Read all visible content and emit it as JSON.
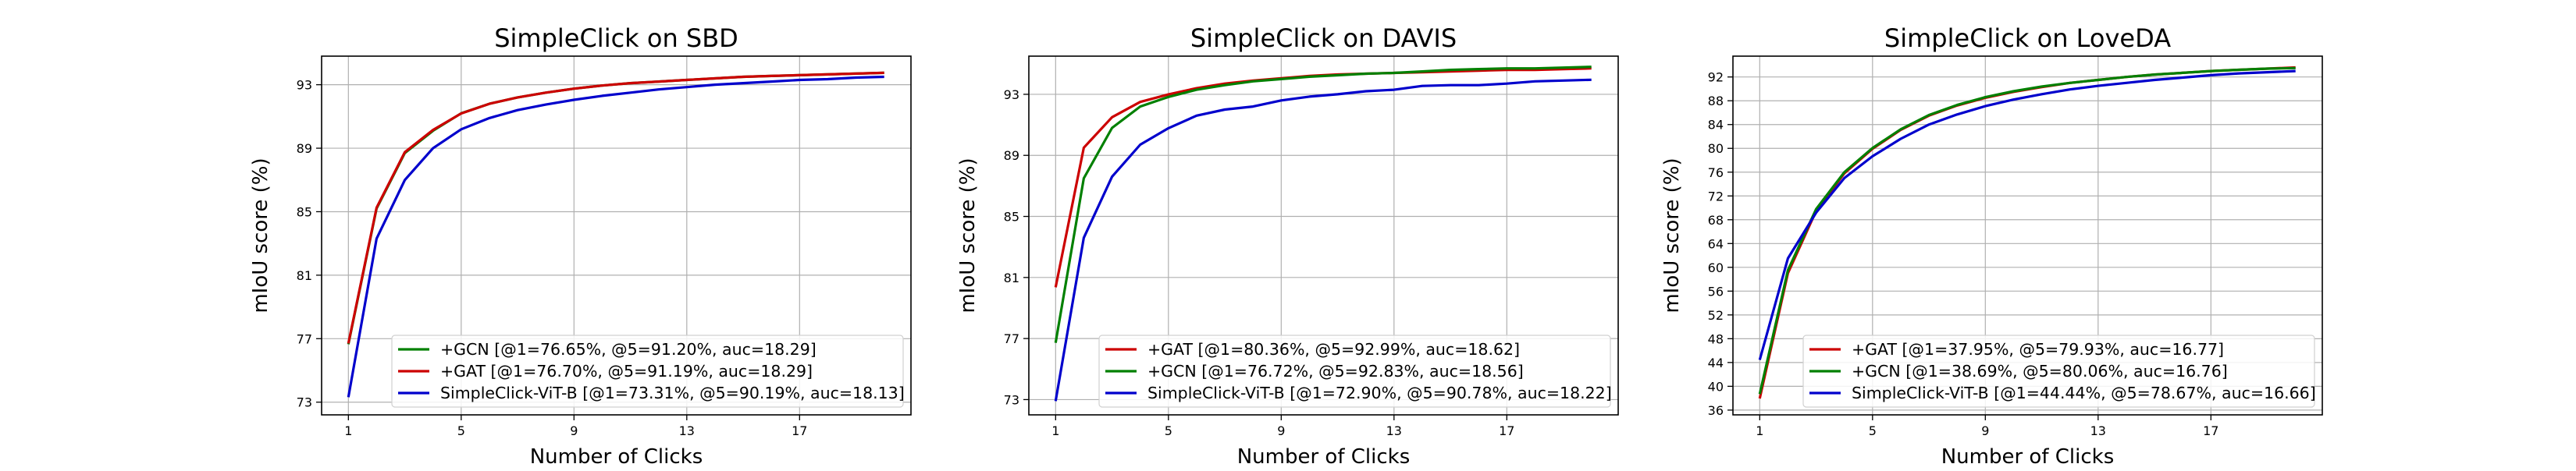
{
  "chart_data": [
    {
      "type": "line",
      "title": "SimpleClick on SBD",
      "xlabel": "Number of Clicks",
      "ylabel": "mIoU score (%)",
      "xlim": [
        0.05,
        20.95
      ],
      "ylim": [
        72.2,
        94.8
      ],
      "xticks": [
        1,
        5,
        9,
        13,
        17
      ],
      "yticks": [
        73,
        77,
        81,
        85,
        89,
        93
      ],
      "grid": true,
      "legend_position": "lower-right",
      "x": [
        1,
        2,
        3,
        4,
        5,
        6,
        7,
        8,
        9,
        10,
        11,
        12,
        13,
        14,
        15,
        16,
        17,
        18,
        19,
        20
      ],
      "series": [
        {
          "name": "+GCN [@1=76.65%, @5=91.20%, auc=18.29]",
          "color": "#008000",
          "values": [
            76.65,
            85.2,
            88.7,
            90.1,
            91.2,
            91.8,
            92.2,
            92.5,
            92.75,
            92.95,
            93.1,
            93.2,
            93.3,
            93.4,
            93.5,
            93.55,
            93.6,
            93.65,
            93.7,
            93.75
          ]
        },
        {
          "name": "+GAT [@1=76.70%, @5=91.19%, auc=18.29]",
          "color": "#cc0000",
          "values": [
            76.7,
            85.25,
            88.75,
            90.15,
            91.19,
            91.8,
            92.2,
            92.5,
            92.75,
            92.95,
            93.1,
            93.2,
            93.3,
            93.4,
            93.5,
            93.55,
            93.6,
            93.65,
            93.7,
            93.75
          ]
        },
        {
          "name": "SimpleClick-ViT-B [@1=73.31%, @5=90.19%, auc=18.13]",
          "color": "#0000cc",
          "values": [
            73.31,
            83.3,
            87.0,
            89.0,
            90.19,
            90.9,
            91.4,
            91.75,
            92.05,
            92.3,
            92.5,
            92.7,
            92.85,
            93.0,
            93.1,
            93.2,
            93.3,
            93.35,
            93.45,
            93.5
          ]
        }
      ]
    },
    {
      "type": "line",
      "title": "SimpleClick on DAVIS",
      "xlabel": "Number of Clicks",
      "ylabel": "mIoU score (%)",
      "xlim": [
        0.05,
        20.95
      ],
      "ylim": [
        72.0,
        95.5
      ],
      "xticks": [
        1,
        5,
        9,
        13,
        17
      ],
      "yticks": [
        73,
        77,
        81,
        85,
        89,
        93
      ],
      "grid": true,
      "legend_position": "lower-right",
      "x": [
        1,
        2,
        3,
        4,
        5,
        6,
        7,
        8,
        9,
        10,
        11,
        12,
        13,
        14,
        15,
        16,
        17,
        18,
        19,
        20
      ],
      "series": [
        {
          "name": "+GAT [@1=80.36%, @5=92.99%, auc=18.62]",
          "color": "#cc0000",
          "values": [
            80.36,
            89.5,
            91.5,
            92.5,
            92.99,
            93.4,
            93.7,
            93.9,
            94.05,
            94.2,
            94.3,
            94.35,
            94.4,
            94.45,
            94.5,
            94.55,
            94.6,
            94.6,
            94.65,
            94.7
          ]
        },
        {
          "name": "+GCN [@1=76.72%, @5=92.83%, auc=18.56]",
          "color": "#008000",
          "values": [
            76.72,
            87.5,
            90.8,
            92.2,
            92.83,
            93.3,
            93.6,
            93.85,
            94.0,
            94.15,
            94.25,
            94.35,
            94.4,
            94.5,
            94.6,
            94.65,
            94.7,
            94.7,
            94.75,
            94.8
          ]
        },
        {
          "name": "SimpleClick-ViT-B [@1=72.90%, @5=90.78%, auc=18.22]",
          "color": "#0000cc",
          "values": [
            72.9,
            83.6,
            87.6,
            89.7,
            90.78,
            91.6,
            92.0,
            92.2,
            92.6,
            92.85,
            93.0,
            93.2,
            93.3,
            93.55,
            93.6,
            93.6,
            93.7,
            93.85,
            93.9,
            93.95
          ]
        }
      ]
    },
    {
      "type": "line",
      "title": "SimpleClick on LoveDA",
      "xlabel": "Number of Clicks",
      "ylabel": "mIoU score (%)",
      "xlim": [
        0.05,
        20.95
      ],
      "ylim": [
        35.2,
        95.5
      ],
      "xticks": [
        1,
        5,
        9,
        13,
        17
      ],
      "yticks": [
        36,
        40,
        44,
        48,
        52,
        56,
        60,
        64,
        68,
        72,
        76,
        80,
        84,
        88,
        92
      ],
      "grid": true,
      "legend_position": "lower-right",
      "x": [
        1,
        2,
        3,
        4,
        5,
        6,
        7,
        8,
        9,
        10,
        11,
        12,
        13,
        14,
        15,
        16,
        17,
        18,
        19,
        20
      ],
      "series": [
        {
          "name": "+GAT [@1=37.95%, @5=79.93%, auc=16.77]",
          "color": "#cc0000",
          "values": [
            37.95,
            59.0,
            69.5,
            75.8,
            79.93,
            83.1,
            85.5,
            87.2,
            88.5,
            89.5,
            90.3,
            91.0,
            91.5,
            92.0,
            92.4,
            92.7,
            93.0,
            93.2,
            93.4,
            93.6
          ]
        },
        {
          "name": "+GCN [@1=38.69%, @5=80.06%, auc=16.76]",
          "color": "#008000",
          "values": [
            38.69,
            59.5,
            69.8,
            76.0,
            80.06,
            83.2,
            85.6,
            87.3,
            88.6,
            89.6,
            90.4,
            91.0,
            91.5,
            92.0,
            92.4,
            92.7,
            93.0,
            93.2,
            93.4,
            93.5
          ]
        },
        {
          "name": "SimpleClick-ViT-B [@1=44.44%, @5=78.67%, auc=16.66]",
          "color": "#0000cc",
          "values": [
            44.44,
            61.5,
            69.2,
            75.0,
            78.67,
            81.6,
            84.0,
            85.7,
            87.1,
            88.2,
            89.1,
            89.9,
            90.5,
            91.0,
            91.5,
            91.9,
            92.3,
            92.6,
            92.8,
            93.0
          ]
        }
      ]
    }
  ]
}
